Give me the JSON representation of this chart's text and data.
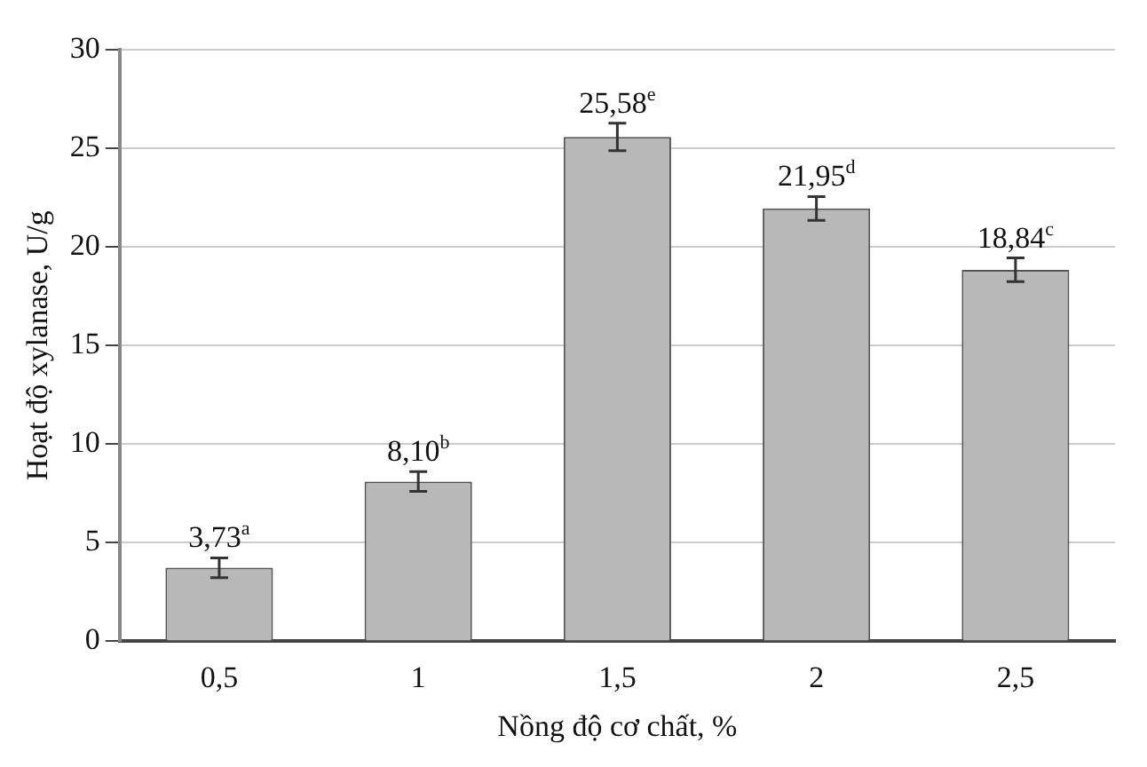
{
  "chart_data": {
    "type": "bar",
    "xlabel": "Nồng độ cơ chất, %",
    "ylabel": "Hoạt độ xylanase, U/g",
    "categories": [
      "0,5",
      "1",
      "1,5",
      "2",
      "2,5"
    ],
    "values": [
      3.73,
      8.1,
      25.58,
      21.95,
      18.84
    ],
    "value_labels": [
      "3,73$^{a}$",
      "8,10$^{b}$",
      "25,58$^{e}$",
      "21,95$^{d}$",
      "18,84$^{c}$"
    ],
    "errors": [
      0.5,
      0.5,
      0.7,
      0.6,
      0.6
    ],
    "color": "#b8b8b8",
    "ylim": [
      0,
      30
    ],
    "yticks": [
      0,
      5,
      10,
      15,
      20,
      25,
      30
    ],
    "grid": "y",
    "legend": false
  }
}
